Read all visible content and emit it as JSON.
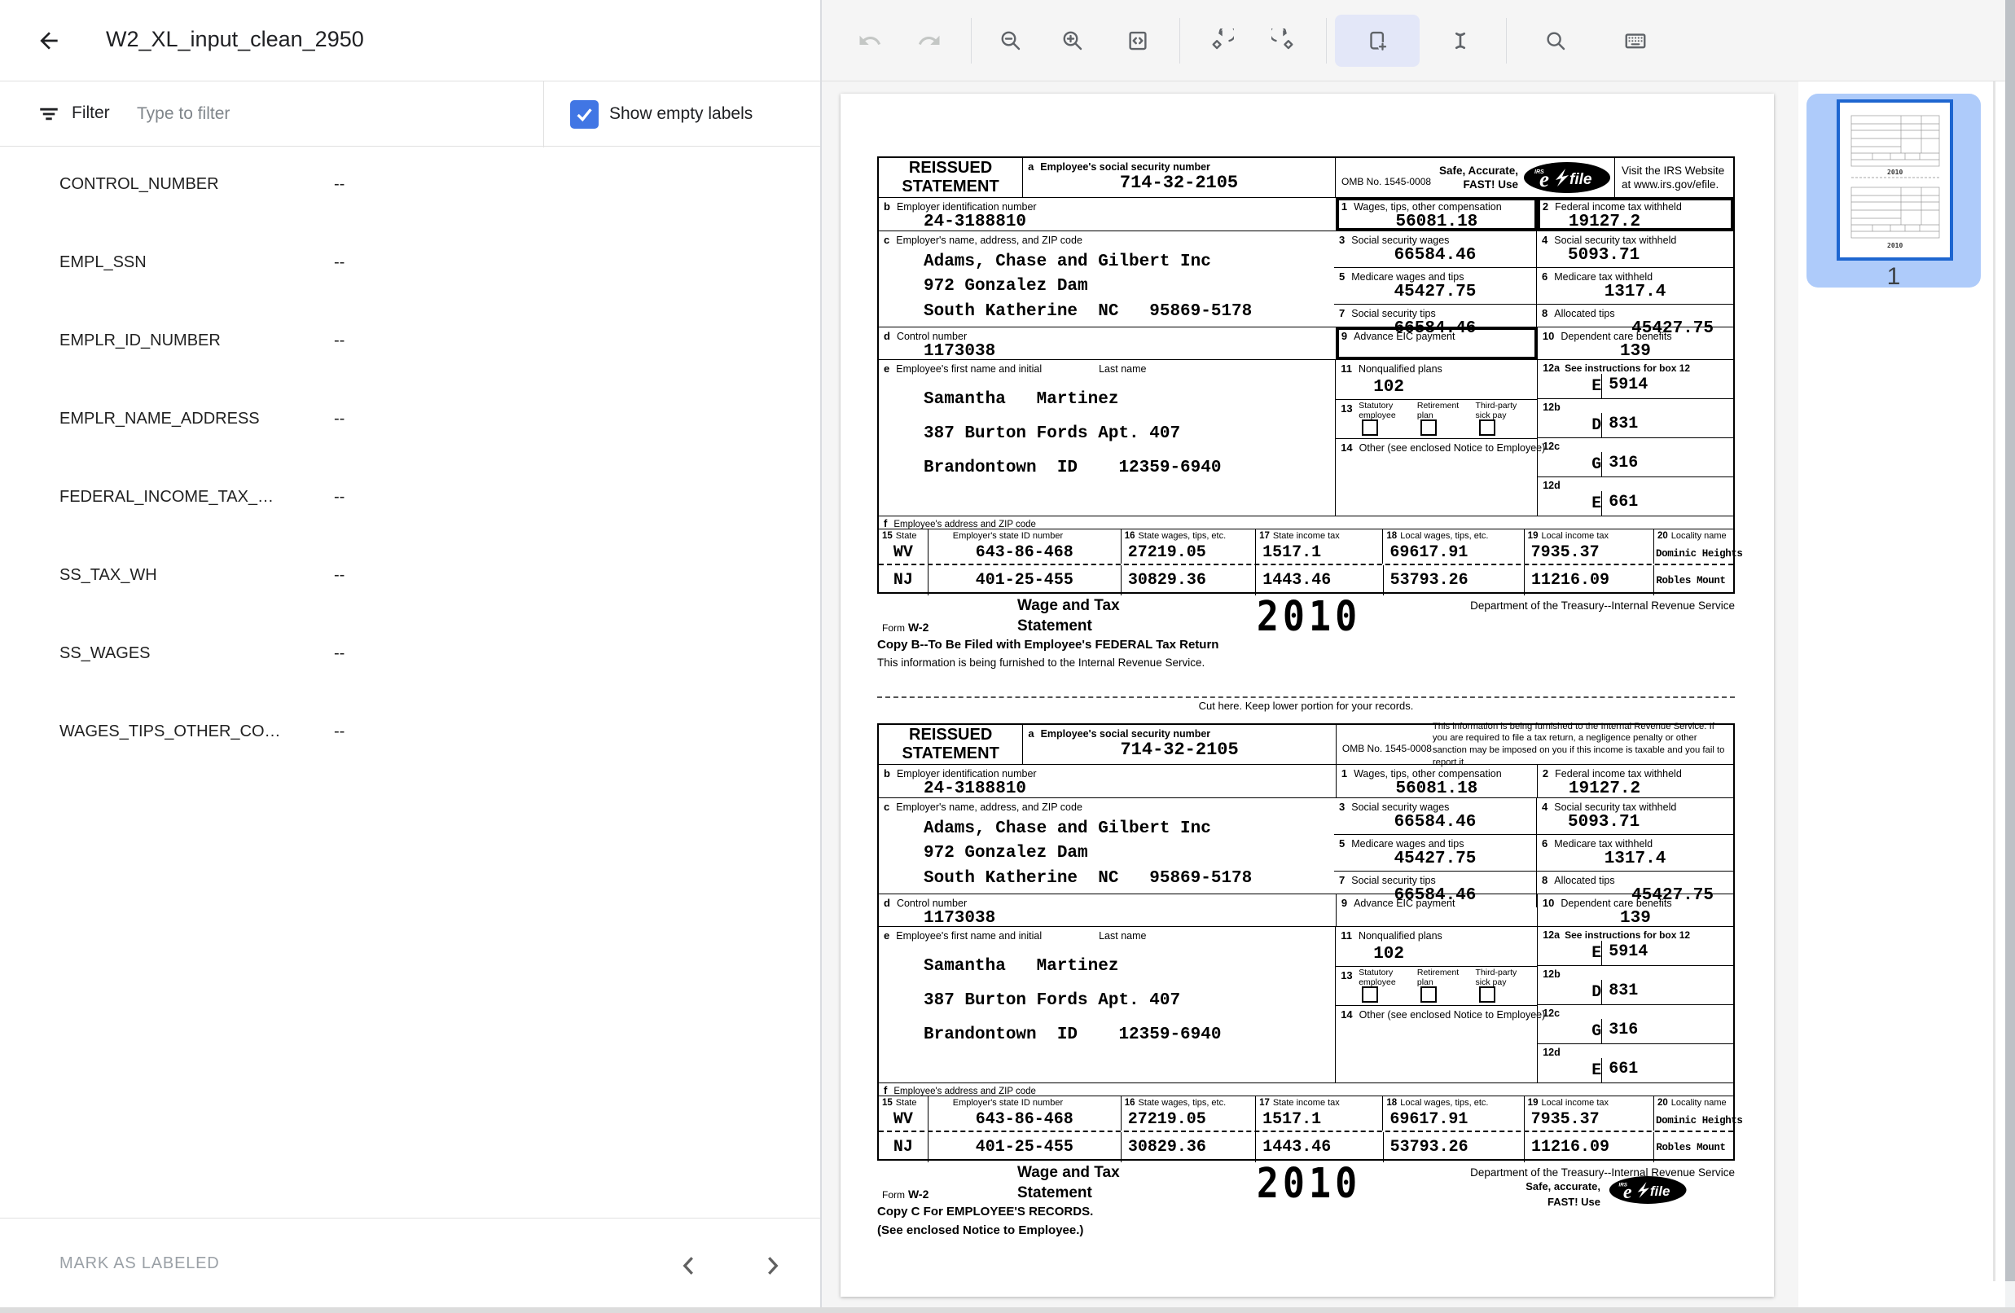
{
  "window": {
    "title": "W2_XL_input_clean_2950"
  },
  "filter_bar": {
    "label": "Filter",
    "placeholder": "Type to filter",
    "show_empty_label": "Show empty labels",
    "checked": true
  },
  "fields": [
    {
      "name": "CONTROL_NUMBER",
      "value": "--"
    },
    {
      "name": "EMPL_SSN",
      "value": "--"
    },
    {
      "name": "EMPLR_ID_NUMBER",
      "value": "--"
    },
    {
      "name": "EMPLR_NAME_ADDRESS",
      "value": "--"
    },
    {
      "name": "FEDERAL_INCOME_TAX_…",
      "value": "--"
    },
    {
      "name": "SS_TAX_WH",
      "value": "--"
    },
    {
      "name": "SS_WAGES",
      "value": "--"
    },
    {
      "name": "WAGES_TIPS_OTHER_CO…",
      "value": "--"
    }
  ],
  "bottom_bar": {
    "mark_as_labeled": "MARK AS LABELED"
  },
  "toolbar": {
    "tools": [
      "undo",
      "redo",
      "zoom-out",
      "zoom-in",
      "fit-to-width",
      "rotate-left",
      "rotate-right",
      "add-bounding-box",
      "select-vertical",
      "search",
      "keyboard-shortcuts"
    ],
    "active_tool": "add-bounding-box",
    "accent_bg": "#e3e7f8"
  },
  "thumbnail": {
    "page_number": "1"
  },
  "colors": {
    "checkbox_blue": "#4176e4",
    "thumb_border_blue": "#1e66d0",
    "thumb_selection": "#aecbfa"
  },
  "w2": {
    "reissued_line1": "REISSUED",
    "reissued_line2": "STATEMENT",
    "omb": "OMB No. 1545-0008",
    "efile": {
      "safe1": "Safe, Accurate,",
      "safe2": "FAST!  Use",
      "visit1": "Visit the IRS Website",
      "visit2": "at www.irs.gov/efile.",
      "logo_irs": "IRS",
      "logo_e": "e",
      "logo_file": "file",
      "safe_small1": "Safe, accurate,",
      "safe_small2": "FAST!  Use"
    },
    "furnish_notice": "This information is being furnished to the Internal Revenue Service.  If you are required to file a tax return, a negligence penalty or other sanction may be imposed on you if this income is taxable and you fail to report it.",
    "boxes": {
      "a": {
        "n": "a",
        "t": "Employee's social security number",
        "v": "714-32-2105"
      },
      "b": {
        "n": "b",
        "t": "Employer identification number",
        "v": "24-3188810"
      },
      "c": {
        "n": "c",
        "t": "Employer's name, address, and ZIP code"
      },
      "d": {
        "n": "d",
        "t": "Control number",
        "v": "1173038"
      },
      "e": {
        "n": "e",
        "t": "Employee's first name and initial",
        "t2": "Last name"
      },
      "f": {
        "n": "f",
        "t": "Employee's address and ZIP code"
      },
      "b1": {
        "n": "1",
        "t": "Wages, tips, other compensation",
        "v": "56081.18"
      },
      "b2": {
        "n": "2",
        "t": "Federal income tax withheld",
        "v": "19127.2"
      },
      "b3": {
        "n": "3",
        "t": "Social security wages",
        "v": "66584.46"
      },
      "b4": {
        "n": "4",
        "t": "Social security tax withheld",
        "v": "5093.71"
      },
      "b5": {
        "n": "5",
        "t": "Medicare wages and tips",
        "v": "45427.75"
      },
      "b6": {
        "n": "6",
        "t": "Medicare tax withheld",
        "v": "1317.4"
      },
      "b7": {
        "n": "7",
        "t": "Social security tips",
        "v": "66584.46"
      },
      "b8": {
        "n": "8",
        "t": "Allocated tips",
        "v": "45427.75"
      },
      "b9": {
        "n": "9",
        "t": "Advance EIC payment",
        "v": ""
      },
      "b10": {
        "n": "10",
        "t": "Dependent care benefits",
        "v": "139"
      },
      "b11": {
        "n": "11",
        "t": "Nonqualified plans",
        "v": "102"
      },
      "b12a": {
        "n": "12a",
        "t": "See instructions for box 12",
        "code": "E",
        "v": "5914"
      },
      "b12b": {
        "n": "12b",
        "code": "D",
        "v": "831"
      },
      "b12c": {
        "n": "12c",
        "code": "G",
        "v": "316"
      },
      "b12d": {
        "n": "12d",
        "code": "E",
        "v": "661"
      },
      "b13": {
        "n": "13",
        "items": [
          [
            "Statutory",
            "employee"
          ],
          [
            "Retirement",
            "plan"
          ],
          [
            "Third-party",
            "sick pay"
          ]
        ]
      },
      "b14": {
        "n": "14",
        "t": "Other (see enclosed Notice to Employee)"
      }
    },
    "employer_lines": [
      "Adams, Chase and Gilbert Inc",
      "972 Gonzalez Dam",
      "South Katherine  NC   95869-5178"
    ],
    "employee_lines": [
      "Samantha   Martinez",
      "387 Burton Fords Apt. 407",
      "Brandontown  ID    12359-6940"
    ],
    "state_table": {
      "h15n": "15",
      "h15": "State",
      "h_id": "Employer's state ID number",
      "h16n": "16",
      "h16": "State wages, tips, etc.",
      "h17n": "17",
      "h17": "State income tax",
      "h18n": "18",
      "h18": "Local wages, tips, etc.",
      "h19n": "19",
      "h19": "Local income tax",
      "h20n": "20",
      "h20": "Locality name",
      "rows": [
        [
          "WV",
          "643-86-468",
          "27219.05",
          "1517.1",
          "69617.91",
          "7935.37",
          "Dominic Heights"
        ],
        [
          "NJ",
          "401-25-455",
          "30829.36",
          "1443.46",
          "53793.26",
          "11216.09",
          "Robles Mount"
        ]
      ]
    },
    "footer": {
      "form_word": "Form",
      "form_no": "W-2",
      "title1": "Wage and Tax",
      "title2": "Statement",
      "year": "2010",
      "dept": "Department of the Treasury--Internal Revenue Service",
      "copy_b_1": "Copy B--To Be Filed with Employee's FEDERAL Tax Return",
      "copy_b_2": "This information is being furnished to the Internal Revenue Service.",
      "copy_c_1": "Copy C For EMPLOYEE'S RECORDS.",
      "copy_c_2": "(See enclosed Notice to Employee.)"
    },
    "cut_line": "Cut here.  Keep lower portion for your records."
  }
}
